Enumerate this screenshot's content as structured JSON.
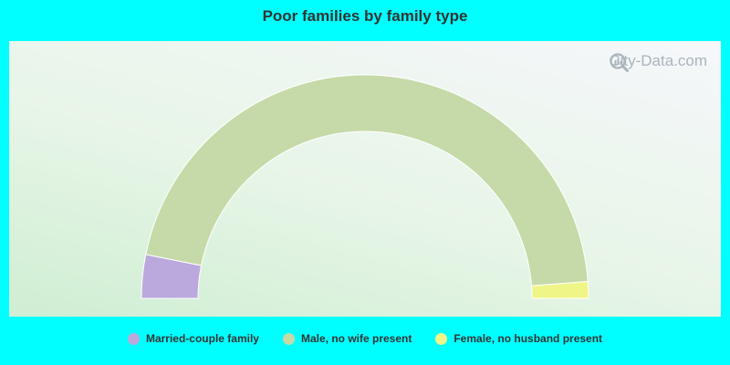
{
  "chart_data": {
    "type": "pie",
    "variant": "half-donut",
    "title": "Poor families by family type",
    "slices": [
      {
        "label": "Married-couple family",
        "value": 6.3,
        "color": "#bba9dd"
      },
      {
        "label": "Male, no wife present",
        "value": 91.3,
        "color": "#c5daa8"
      },
      {
        "label": "Female, no husband present",
        "value": 2.4,
        "color": "#f0f588"
      }
    ],
    "legend_position": "bottom"
  },
  "watermark": {
    "text": "City-Data.com",
    "icon": "magnifier-chart-icon"
  }
}
